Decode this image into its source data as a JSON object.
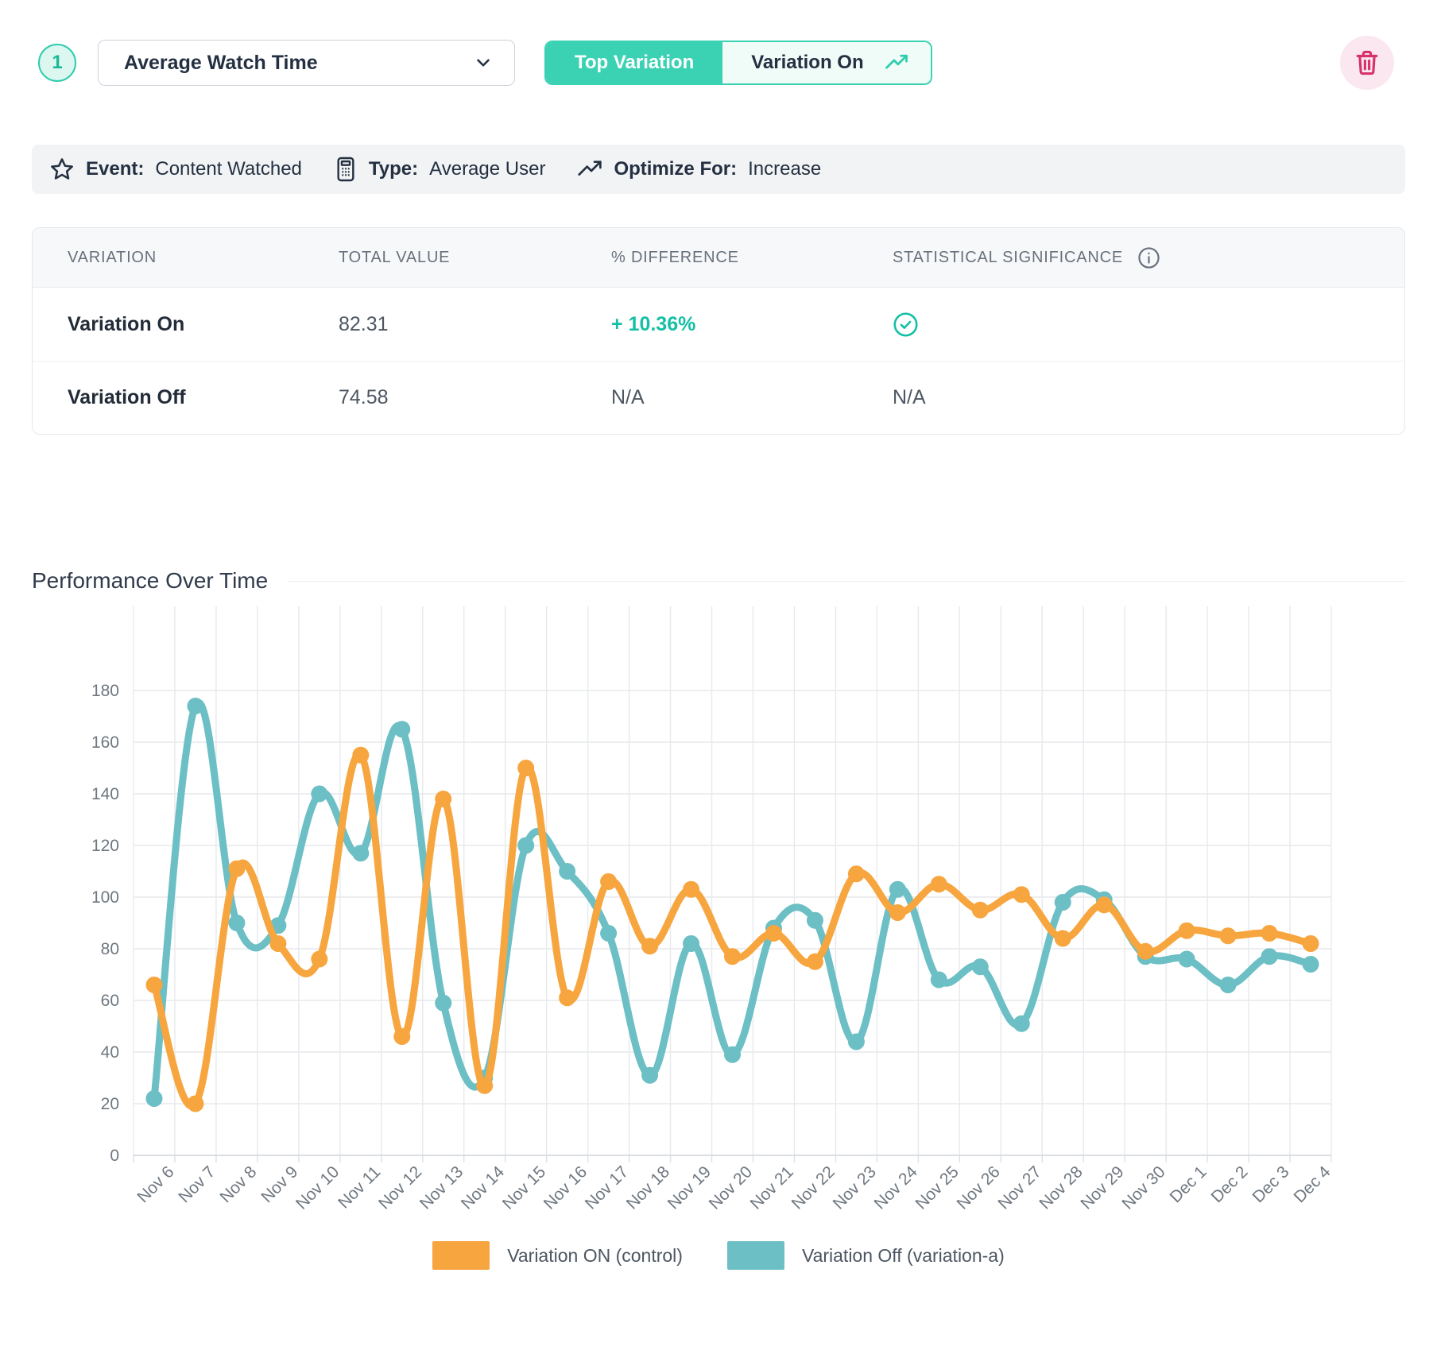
{
  "header": {
    "step_number": "1",
    "metric_dropdown": {
      "value": "Average Watch Time"
    },
    "toggle": {
      "top_label": "Top Variation",
      "selected_label": "Variation On"
    }
  },
  "meta": {
    "event_label": "Event:",
    "event_value": "Content Watched",
    "type_label": "Type:",
    "type_value": "Average User",
    "optimize_label": "Optimize For:",
    "optimize_value": "Increase"
  },
  "table": {
    "columns": [
      "VARIATION",
      "TOTAL VALUE",
      "% DIFFERENCE",
      "STATISTICAL SIGNIFICANCE"
    ],
    "rows": [
      {
        "variation": "Variation On",
        "total_value": "82.31",
        "difference": "+ 10.36%",
        "significance": "check"
      },
      {
        "variation": "Variation Off",
        "total_value": "74.58",
        "difference": "N/A",
        "significance": "N/A"
      }
    ]
  },
  "chart_section": {
    "title": "Performance Over Time"
  },
  "chart_data": {
    "type": "line",
    "x": [
      "Nov 6",
      "Nov 7",
      "Nov 8",
      "Nov 9",
      "Nov 10",
      "Nov 11",
      "Nov 12",
      "Nov 13",
      "Nov 14",
      "Nov 15",
      "Nov 16",
      "Nov 17",
      "Nov 18",
      "Nov 19",
      "Nov 20",
      "Nov 21",
      "Nov 22",
      "Nov 23",
      "Nov 24",
      "Nov 25",
      "Nov 26",
      "Nov 27",
      "Nov 28",
      "Nov 29",
      "Nov 30",
      "Dec 1",
      "Dec 2",
      "Dec 3",
      "Dec 4"
    ],
    "series": [
      {
        "name": "Variation ON (control)",
        "color": "#F7A53E",
        "values": [
          66,
          20,
          111,
          82,
          76,
          155,
          46,
          138,
          27,
          150,
          61,
          106,
          81,
          103,
          77,
          86,
          75,
          109,
          94,
          105,
          95,
          101,
          84,
          97,
          79,
          87,
          85,
          86,
          82
        ]
      },
      {
        "name": "Variation Off (variation-a)",
        "color": "#6CBFC4",
        "values": [
          22,
          174,
          90,
          89,
          140,
          117,
          165,
          59,
          30,
          120,
          110,
          86,
          31,
          82,
          39,
          88,
          91,
          44,
          103,
          68,
          73,
          51,
          98,
          99,
          77,
          76,
          66,
          77,
          74
        ]
      }
    ],
    "ylim": [
      0,
      180
    ],
    "ytick_step": 20,
    "grid": true,
    "legend_position": "bottom",
    "xlabel": "",
    "ylabel": ""
  },
  "colors": {
    "accent_teal": "#3BD2B3",
    "success": "#15BFA6",
    "danger_pink": "#D6336C",
    "line_orange": "#F7A53E",
    "line_teal": "#6CBFC4"
  }
}
